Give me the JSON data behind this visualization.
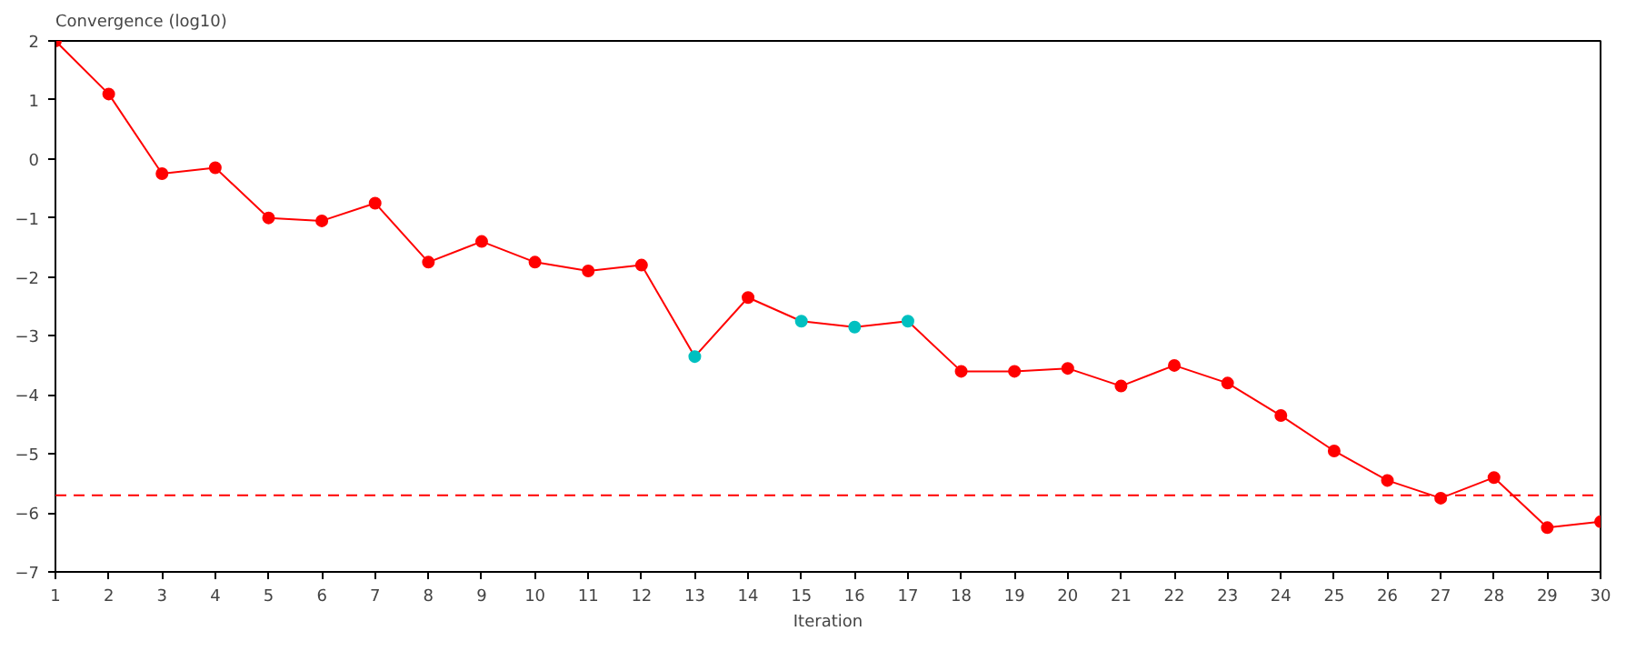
{
  "chart_data": {
    "type": "line",
    "xlabel": "Iteration",
    "ylabel": "Convergence (log10)",
    "x": [
      1,
      2,
      3,
      4,
      5,
      6,
      7,
      8,
      9,
      10,
      11,
      12,
      13,
      14,
      15,
      16,
      17,
      18,
      19,
      20,
      21,
      22,
      23,
      24,
      25,
      26,
      27,
      28,
      29,
      30
    ],
    "series": [
      {
        "color": "#ff0000",
        "values": [
          2,
          1.1,
          -0.25,
          -0.15,
          -1.0,
          -1.05,
          -0.75,
          -1.75,
          -1.4,
          -1.75,
          -1.9,
          -1.8,
          -3.35,
          -2.35,
          -2.75,
          -2.85,
          -2.75,
          -3.6,
          -3.6,
          -3.55,
          -3.85,
          -3.5,
          -3.8,
          -4.35,
          -4.95,
          -5.45,
          -5.75,
          -5.4,
          -6.25,
          -6.15
        ],
        "colors": [
          "#ff0000",
          "#ff0000",
          "#ff0000",
          "#ff0000",
          "#ff0000",
          "#ff0000",
          "#ff0000",
          "#ff0000",
          "#ff0000",
          "#ff0000",
          "#ff0000",
          "#ff0000",
          "#00c0c0",
          "#ff0000",
          "#00c0c0",
          "#00c0c0",
          "#00c0c0",
          "#ff0000",
          "#ff0000",
          "#ff0000",
          "#ff0000",
          "#ff0000",
          "#ff0000",
          "#ff0000",
          "#ff0000",
          "#ff0000",
          "#ff0000",
          "#ff0000",
          "#ff0000",
          "#ff0000"
        ]
      }
    ],
    "xlim": [
      1,
      30
    ],
    "xticks": [
      1,
      2,
      3,
      4,
      5,
      6,
      7,
      8,
      9,
      10,
      11,
      12,
      13,
      14,
      15,
      16,
      17,
      18,
      19,
      20,
      21,
      22,
      23,
      24,
      25,
      26,
      27,
      28,
      29,
      30
    ],
    "ylim": [
      -7,
      2
    ],
    "yticks": [
      -7,
      -6,
      -5,
      -4,
      -3,
      -2,
      -1,
      0,
      1,
      2
    ],
    "ref_lines": [
      {
        "axis": "y",
        "value": -5.7,
        "label": null,
        "color": "#ff0000",
        "line_style": "dashed"
      }
    ],
    "grid": false,
    "marker": "circle",
    "line_style": "solid"
  }
}
